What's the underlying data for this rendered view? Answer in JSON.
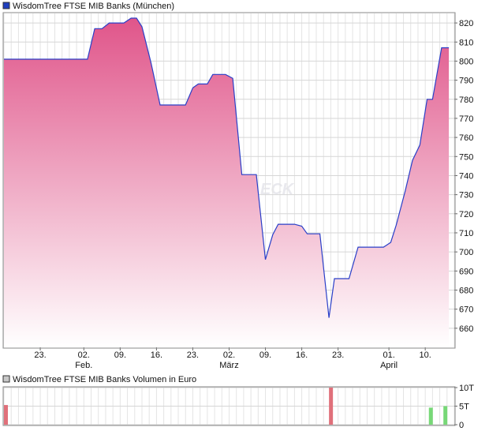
{
  "chart_data": [
    {
      "type": "area",
      "title": "WisdomTree FTSE MIB Banks (München)",
      "legend_color": "#1f3fbf",
      "line_color": "#2a3fc8",
      "fill_top_color": "#e0558a",
      "fill_bottom_color": "#ffffff",
      "ylim": [
        650,
        825
      ],
      "y_ticks": [
        660,
        670,
        680,
        690,
        700,
        710,
        720,
        730,
        740,
        750,
        760,
        770,
        780,
        790,
        800,
        810,
        820
      ],
      "x_ticks": [
        {
          "label": "23.",
          "sub": "",
          "x": 10
        },
        {
          "label": "02.",
          "sub": "Feb.",
          "x": 22
        },
        {
          "label": "09.",
          "sub": "",
          "x": 32
        },
        {
          "label": "16.",
          "sub": "",
          "x": 42
        },
        {
          "label": "23.",
          "sub": "",
          "x": 52
        },
        {
          "label": "02.",
          "sub": "März",
          "x": 62
        },
        {
          "label": "09.",
          "sub": "",
          "x": 72
        },
        {
          "label": "16.",
          "sub": "",
          "x": 82
        },
        {
          "label": "23.",
          "sub": "",
          "x": 92
        },
        {
          "label": "01.",
          "sub": "April",
          "x": 106
        },
        {
          "label": "10.",
          "sub": "",
          "x": 116
        }
      ],
      "x_range": [
        0,
        124
      ],
      "grid": true,
      "series": [
        {
          "points": [
            [
              0,
              801
            ],
            [
              23,
              801
            ],
            [
              25,
              817
            ],
            [
              27,
              817
            ],
            [
              29,
              820
            ],
            [
              33,
              820
            ],
            [
              35,
              822.5
            ],
            [
              36.5,
              822.5
            ],
            [
              38,
              818
            ],
            [
              40.5,
              799
            ],
            [
              43,
              777
            ],
            [
              50,
              777
            ],
            [
              52,
              786
            ],
            [
              53.5,
              788
            ],
            [
              56,
              788
            ],
            [
              57.5,
              793
            ],
            [
              61,
              793
            ],
            [
              63,
              791
            ],
            [
              65.5,
              740.5
            ],
            [
              69.5,
              740.5
            ],
            [
              72,
              696
            ],
            [
              74,
              709
            ],
            [
              75.5,
              714.5
            ],
            [
              80,
              714.5
            ],
            [
              82,
              713.5
            ],
            [
              83.5,
              709.5
            ],
            [
              87,
              709.5
            ],
            [
              89.5,
              665.5
            ],
            [
              91,
              686
            ],
            [
              95,
              686
            ],
            [
              97.5,
              702.5
            ],
            [
              104.5,
              702.5
            ],
            [
              106.5,
              705
            ],
            [
              108,
              714
            ],
            [
              110.5,
              732
            ],
            [
              112.5,
              748
            ],
            [
              114.5,
              756
            ],
            [
              116.5,
              780
            ],
            [
              118,
              780
            ],
            [
              120.5,
              807
            ],
            [
              122.5,
              807
            ]
          ]
        }
      ]
    },
    {
      "type": "bar",
      "title": "WisdomTree FTSE MIB Banks Volumen in Euro",
      "legend_color": "#c8c8c8",
      "ylim": [
        0,
        10
      ],
      "y_ticks": [
        {
          "value": 0,
          "label": "0"
        },
        {
          "value": 5,
          "label": "5T"
        },
        {
          "value": 10,
          "label": "10T"
        }
      ],
      "x_range": [
        0,
        124
      ],
      "grid": true,
      "bars": [
        {
          "x": 0,
          "value": 5.3,
          "color": "#e0707a"
        },
        {
          "x": 89.5,
          "value": 10,
          "color": "#e0707a"
        },
        {
          "x": 117,
          "value": 4.6,
          "color": "#77d877"
        },
        {
          "x": 121,
          "value": 5.0,
          "color": "#77d877"
        }
      ]
    }
  ]
}
